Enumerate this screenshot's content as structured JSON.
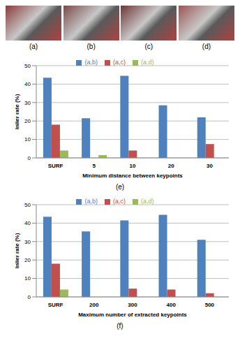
{
  "panels": [
    "(a)",
    "(b)",
    "(c)",
    "(d)"
  ],
  "chart_data": [
    {
      "type": "bar",
      "title": "(e)",
      "x_label": "Minimum distance between keypoints",
      "y_label": "Inlier rate (%)",
      "categories": [
        "SURF",
        "5",
        "10",
        "20",
        "30"
      ],
      "series": [
        {
          "name": "(a,b)",
          "color": "#4f81bd",
          "values": [
            43.5,
            21.5,
            44.5,
            28.5,
            22
          ]
        },
        {
          "name": "(a,c)",
          "color": "#c0504d",
          "values": [
            18,
            0,
            4,
            0,
            7.5
          ]
        },
        {
          "name": "(a,d)",
          "color": "#9bbb59",
          "values": [
            4,
            1.5,
            0,
            0,
            0
          ]
        }
      ],
      "ylim": [
        0,
        50
      ],
      "yticks": [
        0,
        10,
        20,
        30,
        40,
        50
      ],
      "grid": true,
      "legend": "top"
    },
    {
      "type": "bar",
      "title": "(f)",
      "x_label": "Maximum number of extracted keypoints",
      "y_label": "Inlier rate (%)",
      "categories": [
        "SURF",
        "200",
        "300",
        "400",
        "500"
      ],
      "series": [
        {
          "name": "(a,b)",
          "color": "#4f81bd",
          "values": [
            43.5,
            35.5,
            41.5,
            44.5,
            31
          ]
        },
        {
          "name": "(a,c)",
          "color": "#c0504d",
          "values": [
            18,
            0,
            4.5,
            4,
            2
          ]
        },
        {
          "name": "(a,d)",
          "color": "#9bbb59",
          "values": [
            4,
            0,
            0,
            0,
            0
          ]
        }
      ],
      "ylim": [
        0,
        50
      ],
      "yticks": [
        0,
        10,
        20,
        30,
        40,
        50
      ],
      "grid": true,
      "legend": "top"
    }
  ]
}
